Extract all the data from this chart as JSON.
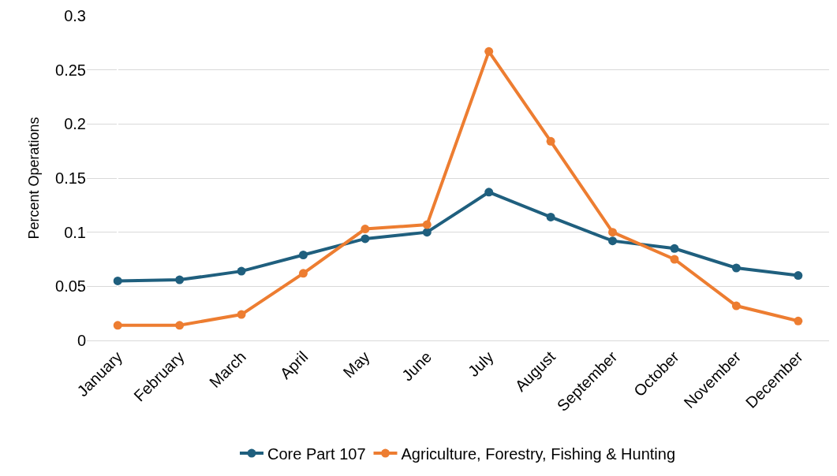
{
  "chart_data": {
    "type": "line",
    "ylabel": "Percent Operations",
    "categories": [
      "January",
      "February",
      "March",
      "April",
      "May",
      "June",
      "July",
      "August",
      "September",
      "October",
      "November",
      "December"
    ],
    "series": [
      {
        "name": "Core Part 107",
        "color": "#1f5f7e",
        "values": [
          0.055,
          0.056,
          0.064,
          0.079,
          0.094,
          0.1,
          0.137,
          0.114,
          0.092,
          0.085,
          0.067,
          0.06
        ]
      },
      {
        "name": "Agriculture, Forestry, Fishing & Hunting",
        "color": "#ed7d31",
        "values": [
          0.014,
          0.014,
          0.024,
          0.062,
          0.103,
          0.107,
          0.267,
          0.184,
          0.1,
          0.075,
          0.032,
          0.018
        ]
      }
    ],
    "ylim": [
      0,
      0.3
    ],
    "yticks": [
      0,
      0.05,
      0.1,
      0.15,
      0.2,
      0.25,
      0.3
    ],
    "grid": "y",
    "legend": "bottom",
    "marker": "circle",
    "line_style": "solid"
  }
}
